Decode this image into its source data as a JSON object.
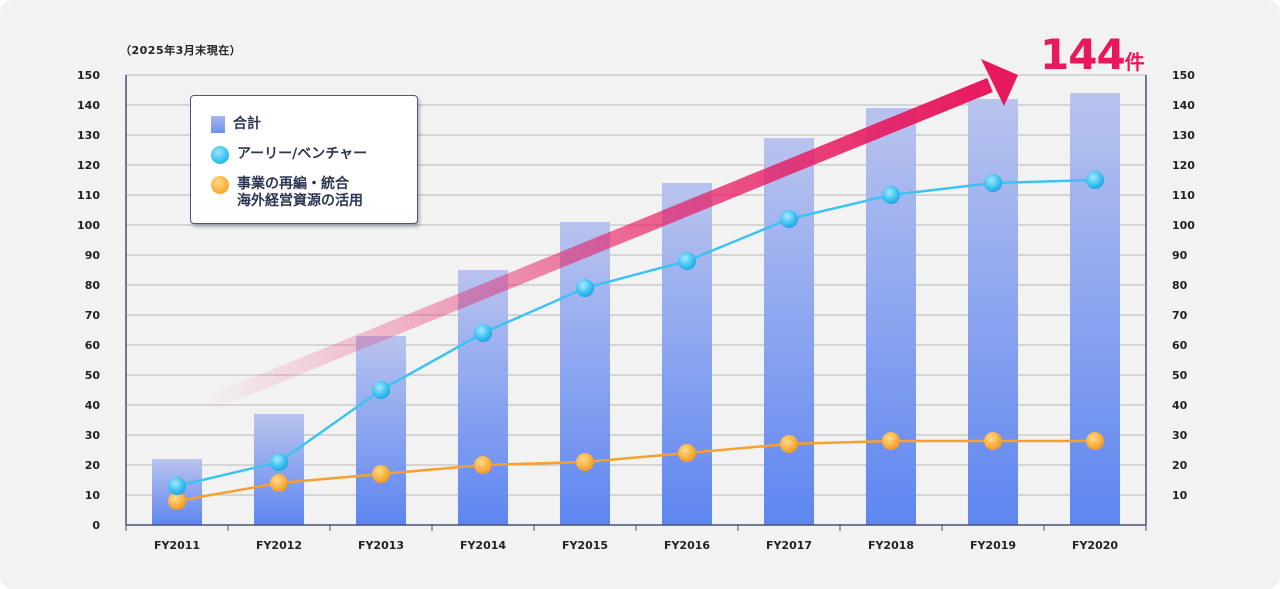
{
  "note": "（2025年3月末現在）",
  "callout": {
    "value": "144",
    "unit": "件"
  },
  "legend": {
    "total": "合計",
    "early": "アーリー/ベンチャー",
    "restructure": "事業の再編・統合\n海外経営資源の活用"
  },
  "colors": {
    "bar_top": "#b9c3ee",
    "bar_bottom": "#5d86f1",
    "early_line": "#3cc3f2",
    "restructure_line": "#f5a02f",
    "arrow": "#e8185f",
    "grid": "#b8b8b8",
    "axis": "#47507a"
  },
  "chart_data": {
    "type": "bar",
    "categories": [
      "FY2011",
      "FY2012",
      "FY2013",
      "FY2014",
      "FY2015",
      "FY2016",
      "FY2017",
      "FY2018",
      "FY2019",
      "FY2020"
    ],
    "series": [
      {
        "name": "合計",
        "type": "bar",
        "values": [
          22,
          37,
          63,
          85,
          101,
          114,
          129,
          139,
          142,
          144
        ]
      },
      {
        "name": "アーリー/ベンチャー",
        "type": "line",
        "values": [
          13,
          21,
          45,
          64,
          79,
          88,
          102,
          110,
          114,
          115
        ]
      },
      {
        "name": "事業の再編・統合 海外経営資源の活用",
        "type": "line",
        "values": [
          8,
          14,
          17,
          20,
          21,
          24,
          27,
          28,
          28,
          28
        ]
      }
    ],
    "ylim": [
      0,
      150
    ],
    "left_ticks": [
      "0",
      "10",
      "20",
      "30",
      "40",
      "50",
      "60",
      "70",
      "80",
      "90",
      "100",
      "110",
      "120",
      "130",
      "140",
      "150"
    ],
    "right_ticks": [
      "10",
      "20",
      "30",
      "40",
      "50",
      "60",
      "70",
      "80",
      "90",
      "100",
      "110",
      "120",
      "130",
      "140",
      "150"
    ],
    "grid": true,
    "legend_position": "top-left"
  }
}
